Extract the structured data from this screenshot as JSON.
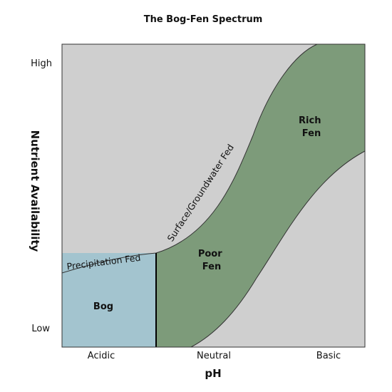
{
  "title": "The Bog-Fen Spectrum",
  "y_axis": {
    "label": "Nutrient Availability",
    "ticks": [
      "High",
      "Low"
    ]
  },
  "x_axis": {
    "label": "pH",
    "ticks": [
      "Acidic",
      "Neutral",
      "Basic"
    ]
  },
  "regions": [
    {
      "lines": [
        "Bog"
      ]
    },
    {
      "lines": [
        "Poor",
        "Fen"
      ]
    },
    {
      "lines": [
        "Rich",
        "Fen"
      ]
    }
  ],
  "curves": [
    "Precipitation Fed",
    "Surface/Groundwater Fed"
  ]
}
